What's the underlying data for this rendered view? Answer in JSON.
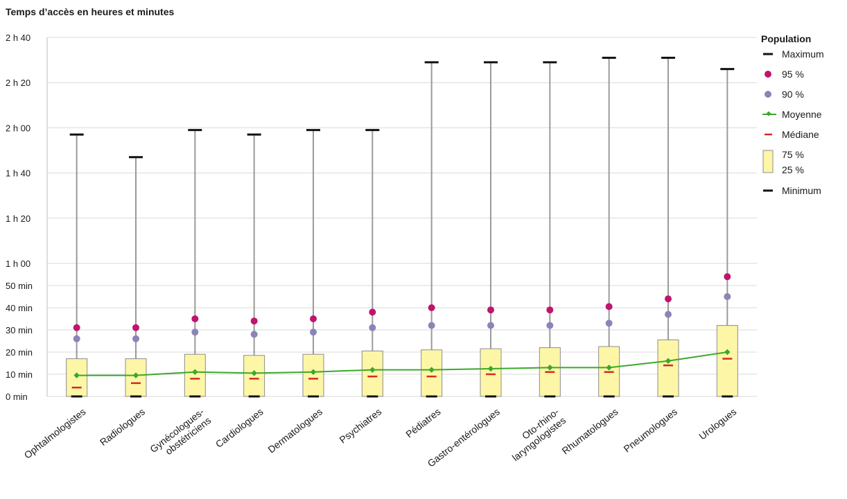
{
  "chart_data": {
    "type": "box",
    "title": "Temps d’accès en heures et minutes",
    "ylabel": "",
    "xlabel": "",
    "ylim": [
      0,
      160
    ],
    "unit": "minutes",
    "y_ticks": [
      {
        "value": 0,
        "label": "0 min"
      },
      {
        "value": 10,
        "label": "10 min"
      },
      {
        "value": 20,
        "label": "20 min"
      },
      {
        "value": 30,
        "label": "30 min"
      },
      {
        "value": 40,
        "label": "40 min"
      },
      {
        "value": 50,
        "label": "50 min"
      },
      {
        "value": 60,
        "label": "1 h 00"
      },
      {
        "value": 80,
        "label": "1 h 20"
      },
      {
        "value": 100,
        "label": "1 h 40"
      },
      {
        "value": 120,
        "label": "2 h 00"
      },
      {
        "value": 140,
        "label": "2 h 20"
      },
      {
        "value": 160,
        "label": "2 h 40"
      }
    ],
    "grid": true,
    "legend_position": "right",
    "legend": {
      "title": "Population",
      "maximum": "Maximum",
      "p95": "95 %",
      "p90": "90 %",
      "mean": "Moyenne",
      "median": "Médiane",
      "q3": "75 %",
      "q1": "25 %",
      "minimum": "Minimum"
    },
    "colors": {
      "p95": "#c0156e",
      "p90": "#8c84b8",
      "mean": "#3aa829",
      "median": "#d42a26",
      "box_fill": "#fcf6a6",
      "box_stroke": "#8c8c8c",
      "whisker": "#9a9a9a",
      "cap": "#111111",
      "grid": "#d9d9d9"
    },
    "categories": [
      [
        "Ophtalmologistes"
      ],
      [
        "Radiologues"
      ],
      [
        "Gynécologues-",
        "obstétriciens"
      ],
      [
        "Cardiologues"
      ],
      [
        "Dermatologues"
      ],
      [
        "Psychiatres"
      ],
      [
        "Pédiatres"
      ],
      [
        "Gastro-entérologues"
      ],
      [
        "Oto-rhino-",
        "laryngologistes"
      ],
      [
        "Rhumatologues"
      ],
      [
        "Pneumologues"
      ],
      [
        "Urologues"
      ]
    ],
    "series": [
      {
        "name": "Minimum",
        "values": [
          0,
          0,
          0,
          0,
          0,
          0,
          0,
          0,
          0,
          0,
          0,
          0
        ]
      },
      {
        "name": "25 %",
        "values": [
          0,
          0,
          0,
          0,
          0,
          0,
          0,
          0,
          0,
          0,
          0,
          0
        ]
      },
      {
        "name": "Médiane",
        "values": [
          4,
          6,
          8,
          8,
          8,
          9,
          9,
          10,
          11,
          11,
          14,
          17
        ]
      },
      {
        "name": "Moyenne",
        "values": [
          9.5,
          9.5,
          11,
          10.5,
          11,
          12,
          12,
          12.5,
          13,
          13,
          16,
          20
        ]
      },
      {
        "name": "75 %",
        "values": [
          17,
          17,
          19,
          18.5,
          19,
          20.5,
          21,
          21.5,
          22,
          22.5,
          25.5,
          32
        ]
      },
      {
        "name": "90 %",
        "values": [
          26,
          26,
          29,
          28,
          29,
          31,
          32,
          32,
          32,
          33,
          37,
          45
        ]
      },
      {
        "name": "95 %",
        "values": [
          31,
          31,
          35,
          34,
          35,
          38,
          40,
          39,
          39,
          40.5,
          44,
          54
        ]
      },
      {
        "name": "Maximum",
        "values": [
          117,
          107,
          119,
          117,
          119,
          119,
          149,
          149,
          149,
          151,
          151,
          146
        ]
      }
    ]
  }
}
